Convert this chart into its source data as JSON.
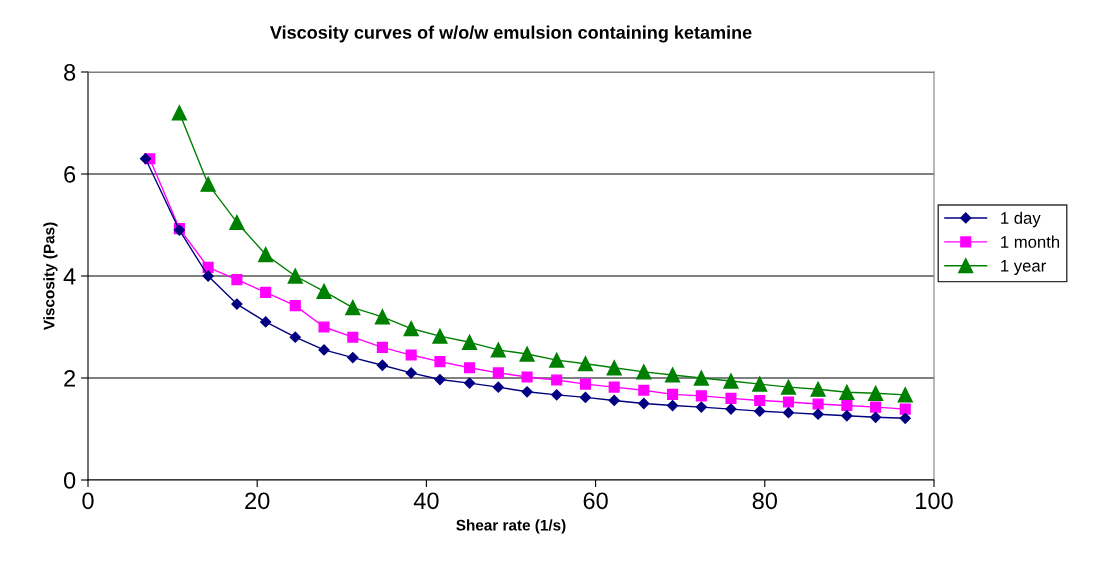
{
  "chart_data": {
    "type": "line",
    "title": "Viscosity curves of w/o/w emulsion containing ketamine",
    "xlabel": "Shear rate (1/s)",
    "ylabel": "Viscosity (Pas)",
    "xlim": [
      0,
      100
    ],
    "xticks": [
      0,
      20,
      40,
      60,
      80,
      100
    ],
    "ylim": [
      0,
      8
    ],
    "yticks": [
      0,
      2,
      4,
      6,
      8
    ],
    "grid": "y",
    "legend": "right",
    "series": [
      {
        "name": "1 day",
        "color": "#000080",
        "marker": "diamond",
        "x": [
          6.8,
          10.8,
          14.2,
          17.6,
          21.0,
          24.5,
          27.9,
          31.3,
          34.8,
          38.2,
          41.6,
          45.1,
          48.5,
          51.9,
          55.4,
          58.8,
          62.2,
          65.7,
          69.1,
          72.5,
          76.0,
          79.4,
          82.8,
          86.3,
          89.7,
          93.1,
          96.6
        ],
        "values": [
          6.3,
          4.9,
          4.0,
          3.45,
          3.1,
          2.8,
          2.55,
          2.4,
          2.25,
          2.1,
          1.97,
          1.9,
          1.82,
          1.73,
          1.67,
          1.62,
          1.56,
          1.5,
          1.46,
          1.43,
          1.39,
          1.35,
          1.32,
          1.29,
          1.26,
          1.23,
          1.21
        ]
      },
      {
        "name": "1 month",
        "color": "#ff00ff",
        "marker": "square",
        "x": [
          7.3,
          10.8,
          14.2,
          17.6,
          21.0,
          24.5,
          27.9,
          31.3,
          34.8,
          38.2,
          41.6,
          45.1,
          48.5,
          51.9,
          55.4,
          58.8,
          62.2,
          65.7,
          69.1,
          72.5,
          76.0,
          79.4,
          82.8,
          86.3,
          89.7,
          93.1,
          96.6
        ],
        "values": [
          6.3,
          4.93,
          4.17,
          3.93,
          3.68,
          3.42,
          3.0,
          2.8,
          2.6,
          2.45,
          2.32,
          2.2,
          2.1,
          2.02,
          1.96,
          1.88,
          1.82,
          1.76,
          1.68,
          1.65,
          1.6,
          1.56,
          1.53,
          1.49,
          1.46,
          1.43,
          1.39
        ]
      },
      {
        "name": "1 year",
        "color": "#008000",
        "marker": "triangle",
        "x": [
          10.8,
          14.2,
          17.6,
          21.0,
          24.5,
          27.9,
          31.3,
          34.8,
          38.2,
          41.6,
          45.1,
          48.5,
          51.9,
          55.4,
          58.8,
          62.2,
          65.7,
          69.1,
          72.5,
          76.0,
          79.4,
          82.8,
          86.3,
          89.7,
          93.1,
          96.6
        ],
        "values": [
          7.2,
          5.8,
          5.05,
          4.42,
          4.0,
          3.7,
          3.38,
          3.2,
          2.97,
          2.82,
          2.7,
          2.55,
          2.47,
          2.35,
          2.28,
          2.2,
          2.12,
          2.06,
          2.0,
          1.94,
          1.88,
          1.82,
          1.78,
          1.72,
          1.7,
          1.67
        ]
      }
    ]
  }
}
